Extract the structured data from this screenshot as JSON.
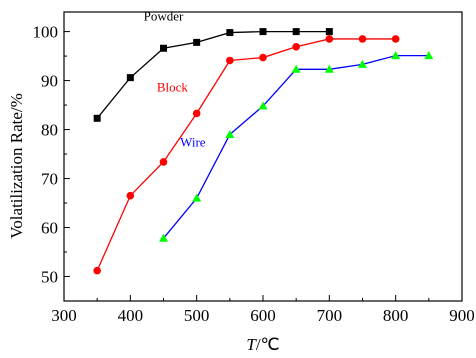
{
  "chart_data": {
    "type": "line",
    "title": "",
    "xlabel": {
      "italic": "T",
      "rest": "/℃"
    },
    "ylabel": "Volatilization Rate/%",
    "xlim": [
      300,
      900
    ],
    "ylim": [
      45,
      104
    ],
    "x_ticks": [
      300,
      400,
      500,
      600,
      700,
      800,
      900
    ],
    "y_ticks": [
      50,
      60,
      70,
      80,
      90,
      100
    ],
    "grid": false,
    "series": [
      {
        "name": "Powder",
        "color": "#000000",
        "marker": "square",
        "marker_color": "#000000",
        "x": [
          350,
          400,
          450,
          500,
          550,
          600,
          650,
          700
        ],
        "y": [
          82.3,
          90.6,
          96.6,
          97.8,
          99.8,
          100.0,
          100.0,
          100.0
        ]
      },
      {
        "name": "Block",
        "color": "#ff0000",
        "marker": "circle",
        "marker_color": "#ff0000",
        "x": [
          350,
          400,
          450,
          500,
          550,
          600,
          650,
          700,
          750,
          800
        ],
        "y": [
          51.2,
          66.5,
          73.4,
          83.3,
          94.1,
          94.7,
          96.9,
          98.5,
          98.5,
          98.5
        ]
      },
      {
        "name": "Wire",
        "color": "#0000ff",
        "marker": "triangle",
        "marker_color": "#00ff00",
        "x": [
          450,
          500,
          550,
          600,
          650,
          700,
          750,
          800,
          850
        ],
        "y": [
          57.8,
          66.0,
          79.0,
          84.8,
          92.3,
          92.3,
          93.3,
          95.1,
          95.1
        ]
      }
    ]
  }
}
